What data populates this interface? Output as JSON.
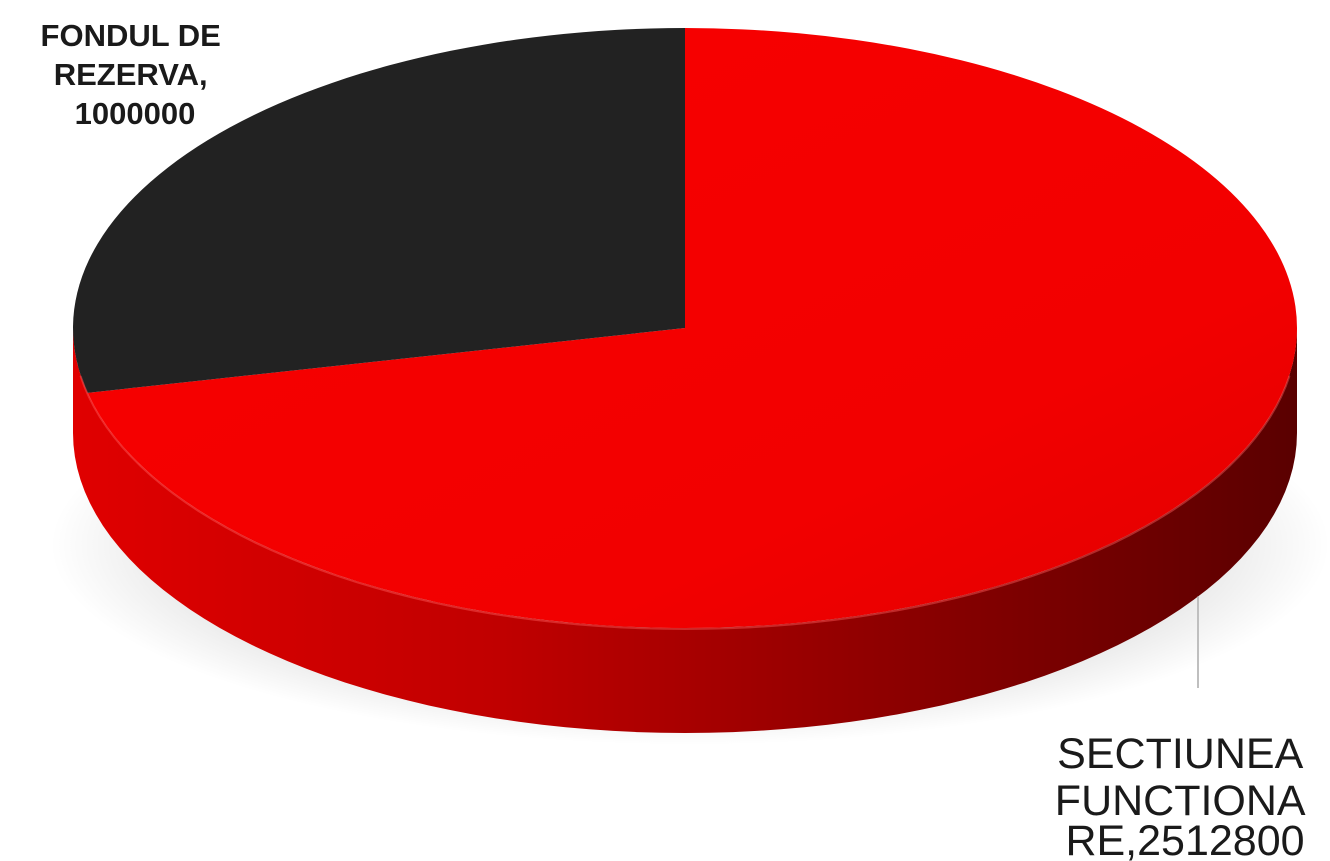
{
  "chart_data": {
    "type": "pie",
    "title": "",
    "slices": [
      {
        "name": "SECTIUNEA FUNCTIONARE",
        "value": 2512800,
        "label_lines": [
          "SECTIUNEA",
          "FUNCTIONA",
          "RE,2512800"
        ],
        "color": "#f40000",
        "side_color": "#b30000"
      },
      {
        "name": "FONDUL DE REZERVA",
        "value": 1000000,
        "label_lines": [
          "FONDUL DE",
          "REZERVA,",
          "1000000"
        ],
        "color": "#222222",
        "side_color": "#111111"
      }
    ],
    "style": "3d",
    "legend": "none",
    "leader_line_color": "#bfbfbf"
  }
}
